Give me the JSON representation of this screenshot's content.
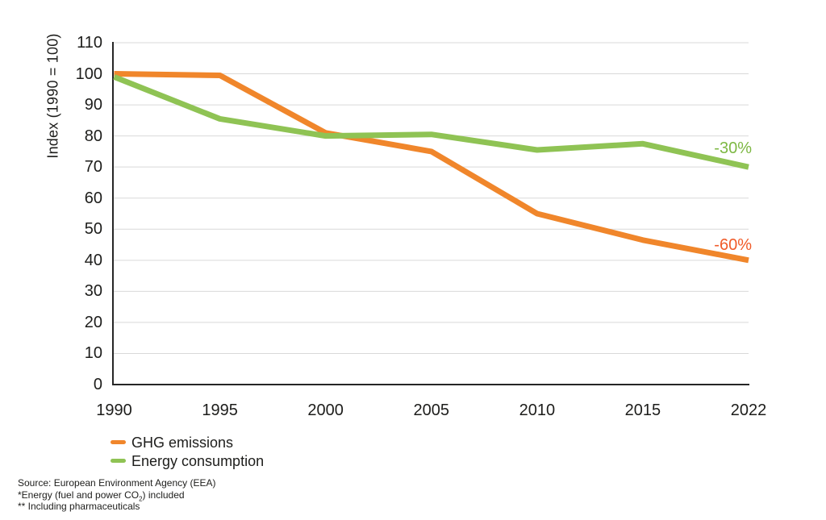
{
  "chart_data": {
    "type": "line",
    "title": "",
    "xlabel": "",
    "ylabel": "Index (1990 = 100)",
    "categories": [
      "1990",
      "1995",
      "2000",
      "2005",
      "2010",
      "2015",
      "2022"
    ],
    "series": [
      {
        "name": "GHG emissions",
        "color": "#F0862B",
        "values": [
          100,
          99.5,
          81,
          75,
          55,
          46.5,
          40
        ]
      },
      {
        "name": "Energy consumption",
        "color": "#8FC354",
        "values": [
          99,
          85.5,
          80,
          80.5,
          75.5,
          77.5,
          70
        ]
      }
    ],
    "ylim": [
      0,
      110
    ],
    "y_tick_step": 10,
    "grid": true,
    "legend_position": "bottom-left",
    "annotations": [
      {
        "text": "-30%",
        "value": 76,
        "color": "#7DB843",
        "series": "Energy consumption"
      },
      {
        "text": "-60%",
        "value": 45,
        "color": "#F05A28",
        "series": "GHG emissions"
      }
    ]
  },
  "colors": {
    "grid": "#D9D9D9",
    "axis": "#262626",
    "text": "#1D1D1B",
    "background": "#FFFFFF"
  },
  "footer": {
    "source": "Source: European Environment Agency (EEA)",
    "footnote1_pre": "*Energy (fuel and power CO",
    "footnote1_sub": "2",
    "footnote1_post": ") included",
    "footnote2": "** Including pharmaceuticals"
  }
}
